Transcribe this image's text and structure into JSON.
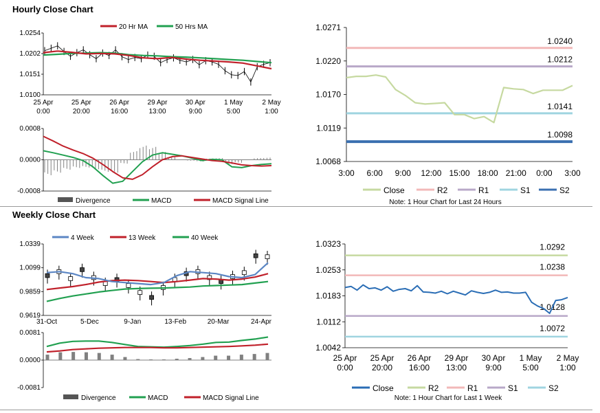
{
  "sections": {
    "hourly_title": "Hourly Close Chart",
    "weekly_title": "Weekly Close Chart"
  },
  "colors": {
    "ma20": "#c0202a",
    "ma50": "#21a050",
    "macd": "#21a050",
    "signal": "#c0202a",
    "divergence": "#808080",
    "close_light": "#c6d9a0",
    "close_blue": "#2a6db5",
    "r2": "#f2b8b8",
    "r1": "#b8a8c8",
    "s1": "#9fd4e0",
    "s2": "#3a6fb0",
    "w4": "#5b86c4",
    "w13": "#c0202a",
    "w40": "#21a050",
    "weekly_r2": "#c6d9a0",
    "weekly_r1": "#f2b8b8",
    "weekly_s1": "#b8a8c8",
    "weekly_s2": "#9fd4e0"
  },
  "chart_data": [
    {
      "id": "hourly_price",
      "type": "line",
      "legend": [
        "20 Hr MA",
        "50 Hrs MA"
      ],
      "y_ticks": [
        "1.0254",
        "1.0202",
        "1.0151",
        "1.0100"
      ],
      "ylim": [
        1.01,
        1.0254
      ],
      "x_labels": [
        [
          "25 Apr",
          "0:00"
        ],
        [
          "25 Apr",
          "20:00"
        ],
        [
          "26 Apr",
          "16:00"
        ],
        [
          "29 Apr",
          "13:00"
        ],
        [
          "30 Apr",
          "9:00"
        ],
        [
          "1 May",
          "5:00"
        ],
        [
          "2 May",
          "1:00"
        ]
      ],
      "series": [
        {
          "name": "20 Hr MA",
          "values": [
            1.0205,
            1.0209,
            1.0206,
            1.0202,
            1.0203,
            1.0202,
            1.0198,
            1.0192,
            1.019,
            1.0193,
            1.0189,
            1.0186,
            1.0184,
            1.0182,
            1.0179,
            1.0172,
            1.0165
          ]
        },
        {
          "name": "50 Hrs MA",
          "values": [
            1.0199,
            1.0201,
            1.0203,
            1.0204,
            1.0205,
            1.0204,
            1.02,
            1.0198,
            1.0197,
            1.0195,
            1.0194,
            1.0192,
            1.019,
            1.0188,
            1.0186,
            1.0183,
            1.018
          ]
        }
      ],
      "price": [
        1.021,
        1.0216,
        1.0222,
        1.0208,
        1.0196,
        1.0205,
        1.0212,
        1.02,
        1.019,
        1.0204,
        1.0198,
        1.0212,
        1.0195,
        1.0188,
        1.0193,
        1.019,
        1.0199,
        1.0196,
        1.018,
        1.0188,
        1.0192,
        1.0186,
        1.0182,
        1.0188,
        1.0175,
        1.0185,
        1.0182,
        1.0176,
        1.016,
        1.015,
        1.0148,
        1.0158,
        1.0132,
        1.017,
        1.0176,
        1.018
      ]
    },
    {
      "id": "hourly_macd",
      "type": "line",
      "legend": [
        "Divergence",
        "MACD",
        "MACD Signal Line"
      ],
      "y_ticks": [
        "0.0008",
        "0.0000",
        "-0.0008"
      ],
      "ylim": [
        -0.0008,
        0.0008
      ],
      "series": [
        {
          "name": "MACD",
          "values": [
            0.00023,
            0.00018,
            0.00012,
            6e-05,
            -2e-05,
            -0.00018,
            -0.0004,
            -0.0006,
            -0.00055,
            -0.0003,
            -5e-05,
            0.00012,
            0.00018,
            0.00014,
            0.0001,
            4e-05,
            -2e-05,
            1e-05,
            0.0,
            -0.00018,
            -0.0002,
            -0.00015,
            -0.00012,
            -0.0001
          ]
        },
        {
          "name": "MACD Signal Line",
          "values": [
            0.0006,
            0.00048,
            0.00035,
            0.00025,
            0.00016,
            4e-05,
            -0.00012,
            -0.0003,
            -0.00046,
            -0.0005,
            -0.00038,
            -0.00018,
            0.0,
            8e-05,
            0.0001,
            6e-05,
            2e-05,
            -2e-05,
            -4e-05,
            -8e-05,
            -0.00013,
            -0.00015,
            -0.00016,
            -0.00015
          ]
        }
      ],
      "divergence": [
        -0.00036,
        -0.0003,
        -0.00023,
        -0.00019,
        -0.00018,
        -0.00022,
        -0.00028,
        -0.0003,
        -9e-05,
        0.0002,
        0.00033,
        0.0003,
        0.00018,
        6e-05,
        0.0,
        -2e-05,
        -4e-05,
        3e-05,
        4e-05,
        -0.0001,
        -7e-05,
        0.0,
        4e-05,
        5e-05
      ]
    },
    {
      "id": "hourly_close_levels",
      "type": "line",
      "x_labels": [
        "3:00",
        "6:00",
        "9:00",
        "12:00",
        "15:00",
        "18:00",
        "21:00",
        "0:00",
        "3:00"
      ],
      "y_ticks": [
        "1.0271",
        "1.0220",
        "1.0170",
        "1.0119",
        "1.0068"
      ],
      "ylim": [
        1.0068,
        1.0271
      ],
      "series": [
        {
          "name": "Close",
          "values": [
            1.0195,
            1.0197,
            1.0197,
            1.0199,
            1.0196,
            1.0177,
            1.0168,
            1.0157,
            1.0155,
            1.0156,
            1.0157,
            1.0139,
            1.0139,
            1.0133,
            1.0136,
            1.0127,
            1.018,
            1.0178,
            1.0177,
            1.0171,
            1.0176,
            1.0176,
            1.0176,
            1.0183
          ]
        }
      ],
      "levels": [
        {
          "name": "R2",
          "value": 1.024,
          "label": "1.0240"
        },
        {
          "name": "R1",
          "value": 1.0212,
          "label": "1.0212"
        },
        {
          "name": "S1",
          "value": 1.0141,
          "label": "1.0141"
        },
        {
          "name": "S2",
          "value": 1.0098,
          "label": "1.0098"
        }
      ],
      "legend": [
        "Close",
        "R2",
        "R1",
        "S1",
        "S2"
      ],
      "note": "Note: 1 Hour Chart for Last 24 Hours"
    },
    {
      "id": "weekly_price",
      "type": "line",
      "legend": [
        "4 Week",
        "13 Week",
        "40 Week"
      ],
      "y_ticks": [
        "1.0339",
        "1.0099",
        "0.9859",
        "0.9619"
      ],
      "ylim": [
        0.9619,
        1.0339
      ],
      "x_labels": [
        "31-Oct",
        "5-Dec",
        "9-Jan",
        "13-Feb",
        "20-Mar",
        "24-Apr"
      ],
      "series": [
        {
          "name": "4 Week",
          "values": [
            1.005,
            1.006,
            1.004,
            1.0,
            0.999,
            0.996,
            0.995,
            0.994,
            0.993,
            0.995,
            1.002,
            1.006,
            1.005,
            1.004,
            1.001,
            1.0,
            1.003,
            1.015
          ]
        },
        {
          "name": "13 Week",
          "values": [
            0.988,
            0.9895,
            0.991,
            0.993,
            0.9955,
            0.997,
            0.9975,
            0.997,
            0.996,
            0.995,
            0.996,
            0.9975,
            0.999,
            0.9985,
            0.9975,
            0.9985,
            1.0005,
            1.004
          ]
        },
        {
          "name": "40 Week",
          "values": [
            0.976,
            0.979,
            0.9815,
            0.9835,
            0.9855,
            0.987,
            0.9885,
            0.989,
            0.9893,
            0.9895,
            0.99,
            0.9905,
            0.9915,
            0.992,
            0.9925,
            0.993,
            0.9945,
            0.996
          ]
        }
      ],
      "candles": [
        1.002,
        1.006,
        0.999,
        1.008,
        1.0,
        0.994,
        0.998,
        0.992,
        0.985,
        0.98,
        0.99,
        0.998,
        1.004,
        1.006,
        1.0,
        0.996,
        1.001,
        1.005,
        1.022,
        1.021
      ]
    },
    {
      "id": "weekly_macd",
      "type": "line",
      "legend": [
        "Divergence",
        "MACD",
        "MACD Signal Line"
      ],
      "y_ticks": [
        "0.0081",
        "0.0000",
        "-0.0081"
      ],
      "ylim": [
        -0.0081,
        0.0081
      ],
      "series": [
        {
          "name": "MACD",
          "values": [
            0.004,
            0.005,
            0.0055,
            0.0056,
            0.0056,
            0.0052,
            0.0046,
            0.004,
            0.0039,
            0.0038,
            0.004,
            0.0043,
            0.0047,
            0.0052,
            0.0053,
            0.0058,
            0.0062,
            0.0068
          ]
        },
        {
          "name": "MACD Signal Line",
          "values": [
            0.0024,
            0.0027,
            0.0031,
            0.0033,
            0.0035,
            0.0036,
            0.0037,
            0.0037,
            0.0037,
            0.0036,
            0.0036,
            0.0037,
            0.0038,
            0.0039,
            0.004,
            0.0042,
            0.0044,
            0.0047
          ]
        }
      ],
      "divergence": [
        0.0016,
        0.0023,
        0.0024,
        0.0023,
        0.0021,
        0.0016,
        0.0009,
        0.0003,
        0.0002,
        0.0002,
        0.0004,
        0.0006,
        0.0009,
        0.0013,
        0.0013,
        0.0016,
        0.0018,
        0.0021
      ]
    },
    {
      "id": "weekly_close_levels",
      "type": "line",
      "x_labels": [
        [
          "25 Apr",
          "0:00"
        ],
        [
          "25 Apr",
          "20:00"
        ],
        [
          "26 Apr",
          "16:00"
        ],
        [
          "29 Apr",
          "13:00"
        ],
        [
          "30 Apr",
          "9:00"
        ],
        [
          "1 May",
          "5:00"
        ],
        [
          "2 May",
          "1:00"
        ]
      ],
      "y_ticks": [
        "1.0323",
        "1.0253",
        "1.0183",
        "1.0112",
        "1.0042"
      ],
      "ylim": [
        1.0042,
        1.0323
      ],
      "series": [
        {
          "name": "Close",
          "values": [
            1.0205,
            1.0208,
            1.0198,
            1.0212,
            1.0202,
            1.0204,
            1.0198,
            1.0207,
            1.0195,
            1.02,
            1.0202,
            1.0196,
            1.021,
            1.0193,
            1.0192,
            1.019,
            1.0195,
            1.0188,
            1.0195,
            1.019,
            1.0185,
            1.0196,
            1.0192,
            1.0189,
            1.0192,
            1.0198,
            1.0192,
            1.0193,
            1.019,
            1.019,
            1.0192,
            1.0165,
            1.0155,
            1.0148,
            1.0135,
            1.017,
            1.0172,
            1.0178
          ]
        }
      ],
      "levels": [
        {
          "name": "R2",
          "value": 1.0292,
          "label": "1.0292"
        },
        {
          "name": "R1",
          "value": 1.0238,
          "label": "1.0238"
        },
        {
          "name": "S1",
          "value": 1.0128,
          "label": "1.0128"
        },
        {
          "name": "S2",
          "value": 1.0072,
          "label": "1.0072"
        }
      ],
      "legend": [
        "Close",
        "R2",
        "R1",
        "S1",
        "S2"
      ],
      "note": "Note: 1 Hour Chart for Last 1 Week"
    }
  ]
}
